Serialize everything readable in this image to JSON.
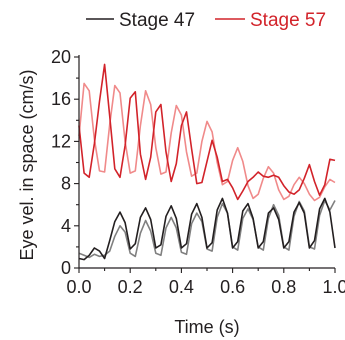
{
  "chart_data": {
    "type": "line",
    "xlabel": "Time (s)",
    "ylabel": "Eye vel. in space (cm/s)",
    "xlim": [
      0.0,
      1.0
    ],
    "ylim": [
      0,
      20
    ],
    "xticks": [
      0.0,
      0.2,
      0.4,
      0.6,
      0.8,
      1.0
    ],
    "xtick_labels": [
      "0.0",
      "0.2",
      "0.4",
      "0.6",
      "0.8",
      "1.0"
    ],
    "yticks": [
      0,
      4,
      8,
      12,
      16,
      20
    ],
    "ytick_labels": [
      "0",
      "4",
      "8",
      "12",
      "16",
      "20"
    ],
    "grid": false,
    "legend": {
      "placement": "top",
      "entries": [
        {
          "label": "Stage 47",
          "color": "#231f20"
        },
        {
          "label": "Stage 57",
          "color": "#d2232a"
        }
      ]
    },
    "series": [
      {
        "name": "Stage 47",
        "color": "#231f20",
        "x": [
          0.0,
          0.02,
          0.04,
          0.06,
          0.08,
          0.1,
          0.12,
          0.14,
          0.16,
          0.18,
          0.2,
          0.22,
          0.24,
          0.26,
          0.28,
          0.3,
          0.32,
          0.34,
          0.36,
          0.38,
          0.4,
          0.42,
          0.44,
          0.46,
          0.48,
          0.5,
          0.52,
          0.54,
          0.56,
          0.58,
          0.6,
          0.62,
          0.64,
          0.66,
          0.68,
          0.7,
          0.72,
          0.74,
          0.76,
          0.78,
          0.8,
          0.82,
          0.84,
          0.86,
          0.88,
          0.9,
          0.92,
          0.94,
          0.96,
          0.98,
          1.0
        ],
        "y": [
          0.9,
          0.8,
          1.2,
          1.9,
          1.6,
          0.9,
          2.6,
          4.4,
          5.3,
          4.3,
          1.8,
          2.3,
          4.8,
          5.7,
          4.6,
          1.9,
          2.2,
          4.9,
          5.9,
          4.7,
          1.9,
          2.3,
          5.1,
          6.1,
          4.8,
          1.9,
          2.4,
          5.5,
          6.6,
          5.2,
          1.9,
          2.5,
          5.4,
          6.1,
          4.7,
          1.9,
          2.5,
          5.2,
          5.7,
          4.6,
          1.9,
          2.5,
          5.3,
          6.2,
          5.2,
          1.9,
          2.6,
          5.6,
          6.6,
          5.3,
          1.9
        ]
      },
      {
        "name": "Stage 47 (second trace)",
        "color": "#808080",
        "x": [
          0.0,
          0.02,
          0.04,
          0.06,
          0.08,
          0.1,
          0.12,
          0.14,
          0.16,
          0.18,
          0.2,
          0.22,
          0.24,
          0.26,
          0.28,
          0.3,
          0.32,
          0.34,
          0.36,
          0.38,
          0.4,
          0.42,
          0.44,
          0.46,
          0.48,
          0.5,
          0.52,
          0.54,
          0.56,
          0.58,
          0.6,
          0.62,
          0.64,
          0.66,
          0.68,
          0.7,
          0.72,
          0.74,
          0.76,
          0.78,
          0.8,
          0.82,
          0.84,
          0.86,
          0.88,
          0.9,
          0.92,
          0.94,
          0.96,
          0.98,
          1.0
        ],
        "y": [
          1.4,
          1.2,
          1.0,
          1.3,
          1.1,
          1.2,
          1.6,
          3.0,
          4.0,
          3.4,
          1.4,
          1.1,
          3.3,
          4.5,
          3.5,
          1.4,
          1.2,
          3.8,
          4.8,
          3.8,
          1.5,
          1.3,
          4.2,
          5.2,
          4.4,
          1.8,
          1.6,
          4.8,
          6.1,
          5.2,
          2.0,
          1.7,
          4.7,
          5.6,
          4.6,
          2.0,
          1.7,
          4.7,
          6.0,
          5.0,
          2.0,
          1.7,
          4.9,
          6.3,
          5.4,
          2.0,
          1.8,
          5.0,
          6.4,
          5.5,
          6.4
        ]
      },
      {
        "name": "Stage 57",
        "color": "#d2232a",
        "x": [
          0.0,
          0.02,
          0.04,
          0.06,
          0.08,
          0.1,
          0.12,
          0.14,
          0.16,
          0.18,
          0.2,
          0.22,
          0.24,
          0.26,
          0.28,
          0.3,
          0.32,
          0.34,
          0.36,
          0.38,
          0.4,
          0.42,
          0.44,
          0.46,
          0.48,
          0.5,
          0.52,
          0.54,
          0.56,
          0.58,
          0.6,
          0.62,
          0.64,
          0.66,
          0.68,
          0.7,
          0.72,
          0.74,
          0.76,
          0.78,
          0.8,
          0.82,
          0.84,
          0.86,
          0.88,
          0.9,
          0.92,
          0.94,
          0.96,
          0.98,
          1.0
        ],
        "y": [
          13.5,
          9.0,
          8.6,
          11.8,
          15.8,
          19.3,
          14.4,
          9.4,
          8.6,
          11.6,
          16.1,
          16.7,
          10.8,
          8.4,
          10.5,
          14.8,
          15.5,
          11.0,
          8.2,
          9.9,
          13.5,
          14.8,
          11.3,
          8.0,
          8.1,
          10.1,
          12.1,
          10.5,
          8.2,
          8.4,
          7.6,
          6.5,
          7.3,
          8.2,
          8.6,
          9.1,
          8.7,
          8.6,
          8.8,
          8.6,
          7.8,
          7.2,
          7.0,
          7.4,
          8.5,
          9.8,
          8.2,
          6.9,
          7.9,
          10.3,
          10.2
        ]
      },
      {
        "name": "Stage 57 (second trace)",
        "color": "#f08a8a",
        "x": [
          0.0,
          0.02,
          0.04,
          0.06,
          0.08,
          0.1,
          0.12,
          0.14,
          0.16,
          0.18,
          0.2,
          0.22,
          0.24,
          0.26,
          0.28,
          0.3,
          0.32,
          0.34,
          0.36,
          0.38,
          0.4,
          0.42,
          0.44,
          0.46,
          0.48,
          0.5,
          0.52,
          0.54,
          0.56,
          0.58,
          0.6,
          0.62,
          0.64,
          0.66,
          0.68,
          0.7,
          0.72,
          0.74,
          0.76,
          0.78,
          0.8,
          0.82,
          0.84,
          0.86,
          0.88,
          0.9,
          0.92,
          0.94,
          0.96,
          0.98,
          1.0
        ],
        "y": [
          12.5,
          17.5,
          16.8,
          12.2,
          9.2,
          9.1,
          13.6,
          17.3,
          16.6,
          12.0,
          9.0,
          9.2,
          13.5,
          16.8,
          15.5,
          11.4,
          8.9,
          9.1,
          12.8,
          15.4,
          14.5,
          11.0,
          8.7,
          9.0,
          12.0,
          13.9,
          12.9,
          10.0,
          7.9,
          8.2,
          10.2,
          11.4,
          10.1,
          7.8,
          6.6,
          7.0,
          8.5,
          9.6,
          9.0,
          7.4,
          6.5,
          6.8,
          7.9,
          8.6,
          8.0,
          7.0,
          6.4,
          6.7,
          7.7,
          8.4,
          8.1
        ]
      }
    ]
  }
}
